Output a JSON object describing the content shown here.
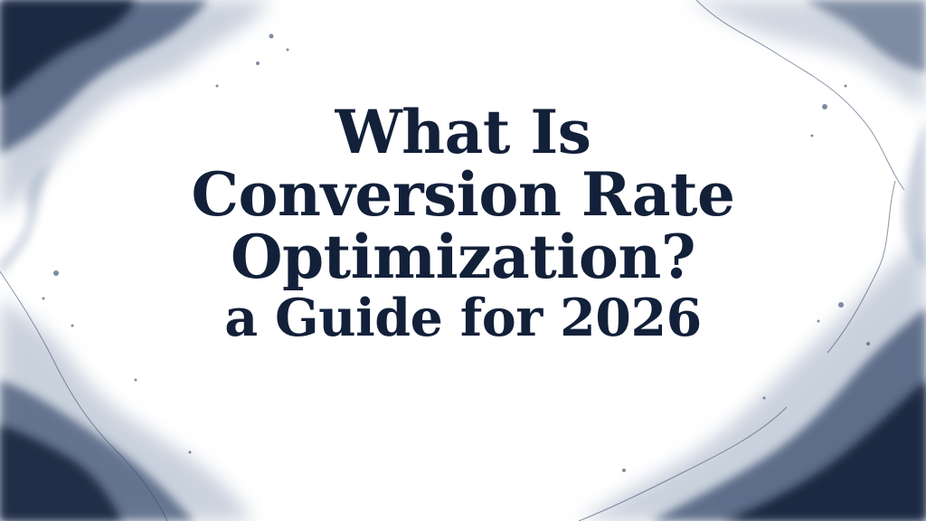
{
  "title": {
    "lines": [
      "What Is",
      "Conversion Rate",
      "Optimization?",
      "a Guide for 2026"
    ]
  },
  "colors": {
    "ink_dark": "#13203a",
    "ink_mid": "#3a4e6e",
    "ink_light": "#8a9bb6",
    "background": "#ffffff"
  }
}
